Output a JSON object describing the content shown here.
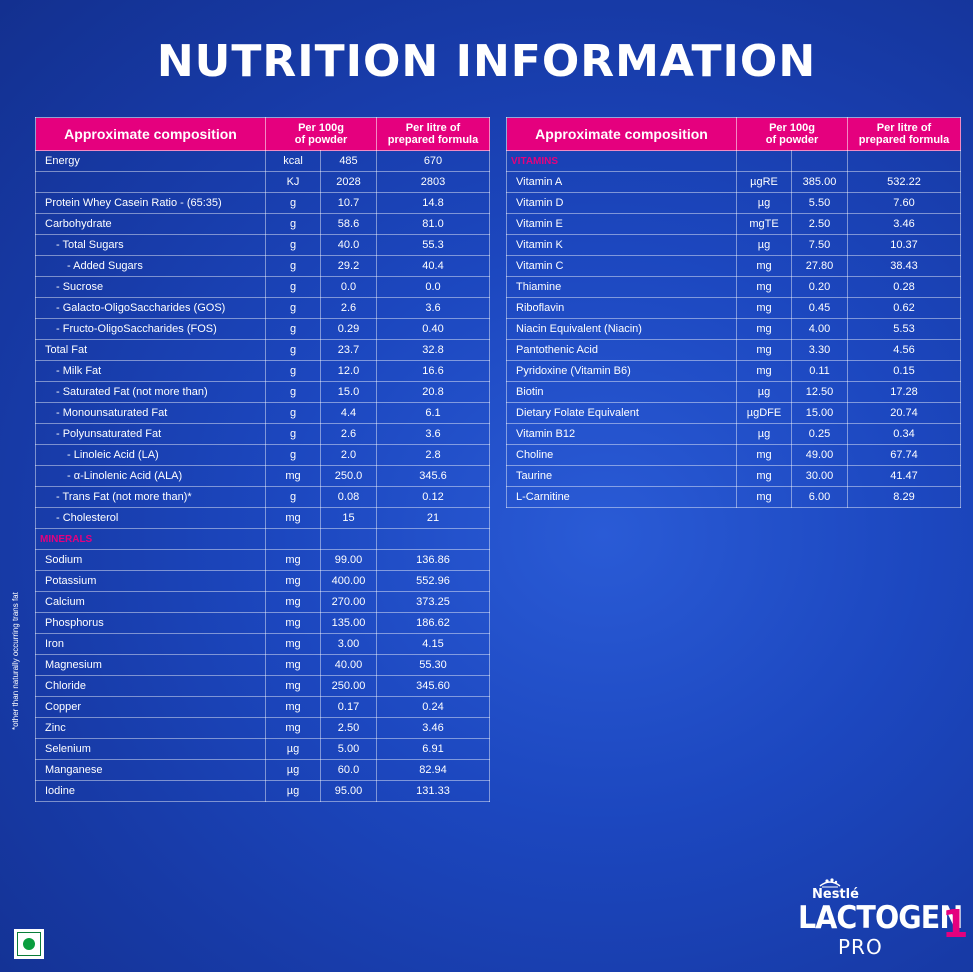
{
  "title": "NUTRITION INFORMATION",
  "headers": {
    "composition": "Approximate composition",
    "per100_line1": "Per 100g",
    "per100_line2": "of powder",
    "perlitre_line1": "Per litre of",
    "perlitre_line2": "prepared formula"
  },
  "left_rows": [
    {
      "name": "Energy",
      "unit": "kcal",
      "per100": "485",
      "perlitre": "670"
    },
    {
      "name": "",
      "unit": "KJ",
      "per100": "2028",
      "perlitre": "2803"
    },
    {
      "name": "Protein Whey Casein Ratio - (65:35)",
      "unit": "g",
      "per100": "10.7",
      "perlitre": "14.8"
    },
    {
      "name": "Carbohydrate",
      "unit": "g",
      "per100": "58.6",
      "perlitre": "81.0"
    },
    {
      "name": "- Total Sugars",
      "unit": "g",
      "per100": "40.0",
      "perlitre": "55.3",
      "indent": 1
    },
    {
      "name": "- Added Sugars",
      "unit": "g",
      "per100": "29.2",
      "perlitre": "40.4",
      "indent": 2
    },
    {
      "name": "- Sucrose",
      "unit": "g",
      "per100": "0.0",
      "perlitre": "0.0",
      "indent": 1
    },
    {
      "name": "- Galacto-OligoSaccharides (GOS)",
      "unit": "g",
      "per100": "2.6",
      "perlitre": "3.6",
      "indent": 1
    },
    {
      "name": "- Fructo-OligoSaccharides (FOS)",
      "unit": "g",
      "per100": "0.29",
      "perlitre": "0.40",
      "indent": 1
    },
    {
      "name": "Total Fat",
      "unit": "g",
      "per100": "23.7",
      "perlitre": "32.8"
    },
    {
      "name": "- Milk Fat",
      "unit": "g",
      "per100": "12.0",
      "perlitre": "16.6",
      "indent": 1
    },
    {
      "name": "- Saturated Fat (not more than)",
      "unit": "g",
      "per100": "15.0",
      "perlitre": "20.8",
      "indent": 1
    },
    {
      "name": "- Monounsaturated Fat",
      "unit": "g",
      "per100": "4.4",
      "perlitre": "6.1",
      "indent": 1
    },
    {
      "name": "- Polyunsaturated Fat",
      "unit": "g",
      "per100": "2.6",
      "perlitre": "3.6",
      "indent": 1
    },
    {
      "name": "- Linoleic Acid (LA)",
      "unit": "g",
      "per100": "2.0",
      "perlitre": "2.8",
      "indent": 2
    },
    {
      "name": "- α-Linolenic Acid (ALA)",
      "unit": "mg",
      "per100": "250.0",
      "perlitre": "345.6",
      "indent": 2
    },
    {
      "name": "- Trans Fat (not more than)*",
      "unit": "g",
      "per100": "0.08",
      "perlitre": "0.12",
      "indent": 1
    },
    {
      "name": "- Cholesterol",
      "unit": "mg",
      "per100": "15",
      "perlitre": "21",
      "indent": 1
    },
    {
      "section": "MINERALS"
    },
    {
      "name": "Sodium",
      "unit": "mg",
      "per100": "99.00",
      "perlitre": "136.86"
    },
    {
      "name": "Potassium",
      "unit": "mg",
      "per100": "400.00",
      "perlitre": "552.96"
    },
    {
      "name": "Calcium",
      "unit": "mg",
      "per100": "270.00",
      "perlitre": "373.25"
    },
    {
      "name": "Phosphorus",
      "unit": "mg",
      "per100": "135.00",
      "perlitre": "186.62"
    },
    {
      "name": "Iron",
      "unit": "mg",
      "per100": "3.00",
      "perlitre": "4.15"
    },
    {
      "name": "Magnesium",
      "unit": "mg",
      "per100": "40.00",
      "perlitre": "55.30"
    },
    {
      "name": "Chloride",
      "unit": "mg",
      "per100": "250.00",
      "perlitre": "345.60"
    },
    {
      "name": "Copper",
      "unit": "mg",
      "per100": "0.17",
      "perlitre": "0.24"
    },
    {
      "name": "Zinc",
      "unit": "mg",
      "per100": "2.50",
      "perlitre": "3.46"
    },
    {
      "name": "Selenium",
      "unit": "µg",
      "per100": "5.00",
      "perlitre": "6.91"
    },
    {
      "name": "Manganese",
      "unit": "µg",
      "per100": "60.0",
      "perlitre": "82.94"
    },
    {
      "name": "Iodine",
      "unit": "µg",
      "per100": "95.00",
      "perlitre": "131.33"
    }
  ],
  "right_rows": [
    {
      "section": "VITAMINS"
    },
    {
      "name": "Vitamin A",
      "unit": "µgRE",
      "per100": "385.00",
      "perlitre": "532.22"
    },
    {
      "name": "Vitamin D",
      "unit": "µg",
      "per100": "5.50",
      "perlitre": "7.60"
    },
    {
      "name": "Vitamin E",
      "unit": "mgTE",
      "per100": "2.50",
      "perlitre": "3.46"
    },
    {
      "name": "Vitamin K",
      "unit": "µg",
      "per100": "7.50",
      "perlitre": "10.37"
    },
    {
      "name": "Vitamin C",
      "unit": "mg",
      "per100": "27.80",
      "perlitre": "38.43"
    },
    {
      "name": "Thiamine",
      "unit": "mg",
      "per100": "0.20",
      "perlitre": "0.28"
    },
    {
      "name": "Riboflavin",
      "unit": "mg",
      "per100": "0.45",
      "perlitre": "0.62"
    },
    {
      "name": "Niacin Equivalent (Niacin)",
      "unit": "mg",
      "per100": "4.00",
      "perlitre": "5.53"
    },
    {
      "name": "Pantothenic Acid",
      "unit": "mg",
      "per100": "3.30",
      "perlitre": "4.56"
    },
    {
      "name": "Pyridoxine (Vitamin B6)",
      "unit": "mg",
      "per100": "0.11",
      "perlitre": "0.15"
    },
    {
      "name": "Biotin",
      "unit": "µg",
      "per100": "12.50",
      "perlitre": "17.28"
    },
    {
      "name": "Dietary Folate Equivalent",
      "unit": "µgDFE",
      "per100": "15.00",
      "perlitre": "20.74"
    },
    {
      "name": "Vitamin B12",
      "unit": "µg",
      "per100": "0.25",
      "perlitre": "0.34"
    },
    {
      "name": "Choline",
      "unit": "mg",
      "per100": "49.00",
      "perlitre": "67.74"
    },
    {
      "name": "Taurine",
      "unit": "mg",
      "per100": "30.00",
      "perlitre": "41.47"
    },
    {
      "name": "L-Carnitine",
      "unit": "mg",
      "per100": "6.00",
      "perlitre": "8.29"
    }
  ],
  "footnote": "*other than naturally occurring trans fat",
  "brand": {
    "maker": "Nestlé",
    "product": "LACTOGEN",
    "stage": "1",
    "variant": "PRO"
  },
  "colors": {
    "accent": "#e5007e",
    "background": "#1c47bf",
    "veg_mark": "#0a9d3e"
  },
  "icons": [
    "nest-icon",
    "veg-symbol-icon"
  ]
}
